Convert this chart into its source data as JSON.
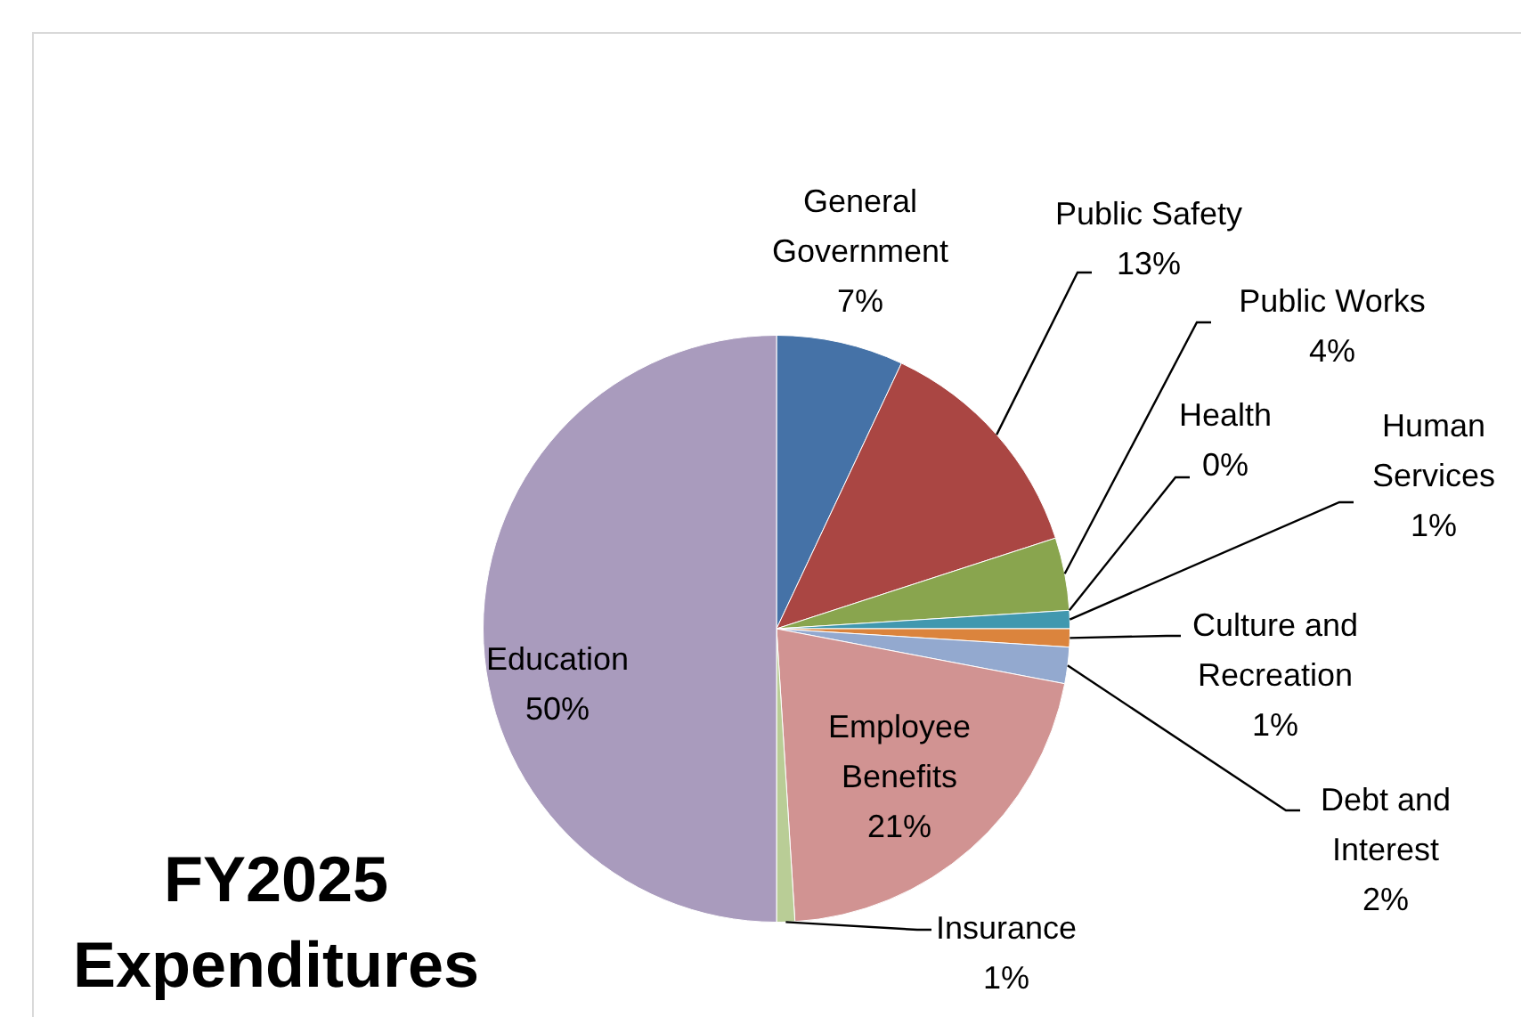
{
  "chart_data": {
    "type": "pie",
    "title": "FY2025 Expenditures",
    "categories": [
      "General Government",
      "Public Safety",
      "Public Works",
      "Health",
      "Human Services",
      "Culture and Recreation",
      "Debt and Interest",
      "Employee Benefits",
      "Insurance",
      "Education"
    ],
    "values": [
      7,
      13,
      4,
      0,
      1,
      1,
      2,
      21,
      1,
      50
    ],
    "colors": [
      "#4572a7",
      "#aa4643",
      "#89a54e",
      "#71588f",
      "#4198af",
      "#db843d",
      "#93a9cf",
      "#d19392",
      "#b9cd96",
      "#a99bbd"
    ],
    "value_labels": [
      "7%",
      "13%",
      "4%",
      "0%",
      "1%",
      "1%",
      "2%",
      "21%",
      "1%",
      "50%"
    ],
    "legend": false
  }
}
